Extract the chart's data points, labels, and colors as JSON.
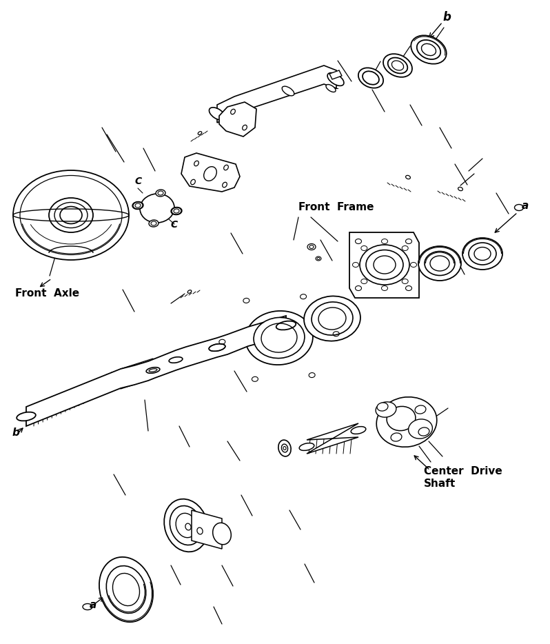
{
  "background_color": "#ffffff",
  "line_color": "#000000",
  "label_front_axle": "Front  Axle",
  "label_front_frame": "Front  Frame",
  "label_center_drive_shaft": "Center  Drive\nShaft",
  "label_b_top": "b",
  "label_b_bottom": "b",
  "label_a_top": "a",
  "label_a_bottom": "a",
  "label_c1": "C",
  "label_c2": "C",
  "fig_width": 7.98,
  "fig_height": 9.34,
  "dpi": 100
}
